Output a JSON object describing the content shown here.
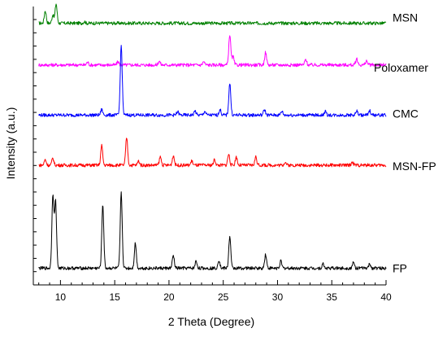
{
  "chart_data": {
    "type": "line",
    "title": "",
    "xlabel": "2 Theta (Degree)",
    "ylabel": "Intensity (a.u.)",
    "xlim": [
      7.5,
      40
    ],
    "x_ticks": [
      10,
      15,
      20,
      25,
      30,
      35,
      40
    ],
    "x_tick_labels": [
      "10",
      "15",
      "20",
      "25",
      "30",
      "35",
      "40"
    ],
    "y_ticks_shown": false,
    "legend": "labels at right end of each trace",
    "series": [
      {
        "name": "MSN",
        "color": "#008000",
        "baseline": 0.94,
        "peaks": [
          [
            8.6,
            0.045
          ],
          [
            9.3,
            0.03
          ],
          [
            9.6,
            0.07
          ],
          [
            12.2,
            0.006
          ]
        ]
      },
      {
        "name": "Poloxamer",
        "color": "#ff00ff",
        "baseline": 0.79,
        "peaks": [
          [
            12.5,
            0.01
          ],
          [
            15.3,
            0.012
          ],
          [
            19.1,
            0.014
          ],
          [
            23.2,
            0.012
          ],
          [
            25.6,
            0.11
          ],
          [
            25.9,
            0.03
          ],
          [
            28.9,
            0.045
          ],
          [
            32.6,
            0.02
          ],
          [
            37.3,
            0.022
          ],
          [
            38.2,
            0.015
          ]
        ]
      },
      {
        "name": "CMC",
        "color": "#0000ff",
        "baseline": 0.61,
        "peaks": [
          [
            13.8,
            0.02
          ],
          [
            15.6,
            0.25
          ],
          [
            20.8,
            0.012
          ],
          [
            22.4,
            0.015
          ],
          [
            23.3,
            0.014
          ],
          [
            24.7,
            0.02
          ],
          [
            25.6,
            0.115
          ],
          [
            28.8,
            0.02
          ],
          [
            30.4,
            0.014
          ],
          [
            34.4,
            0.012
          ],
          [
            37.3,
            0.015
          ],
          [
            38.5,
            0.015
          ]
        ]
      },
      {
        "name": "MSN-FP",
        "color": "#ff0000",
        "baseline": 0.43,
        "peaks": [
          [
            8.6,
            0.02
          ],
          [
            9.3,
            0.025
          ],
          [
            13.8,
            0.07
          ],
          [
            16.1,
            0.1
          ],
          [
            17.2,
            0.015
          ],
          [
            19.2,
            0.03
          ],
          [
            20.4,
            0.035
          ],
          [
            22.1,
            0.015
          ],
          [
            24.2,
            0.02
          ],
          [
            25.5,
            0.04
          ],
          [
            26.2,
            0.03
          ],
          [
            28.0,
            0.03
          ],
          [
            30.7,
            0.012
          ],
          [
            36.9,
            0.012
          ]
        ]
      },
      {
        "name": "FP",
        "color": "#000000",
        "baseline": 0.06,
        "peaks": [
          [
            9.3,
            0.265
          ],
          [
            9.55,
            0.24
          ],
          [
            13.9,
            0.23
          ],
          [
            15.6,
            0.27
          ],
          [
            16.9,
            0.09
          ],
          [
            20.4,
            0.045
          ],
          [
            22.5,
            0.025
          ],
          [
            24.6,
            0.03
          ],
          [
            25.6,
            0.115
          ],
          [
            28.9,
            0.05
          ],
          [
            30.3,
            0.025
          ],
          [
            34.2,
            0.015
          ],
          [
            37.0,
            0.02
          ],
          [
            38.5,
            0.015
          ]
        ]
      }
    ]
  }
}
